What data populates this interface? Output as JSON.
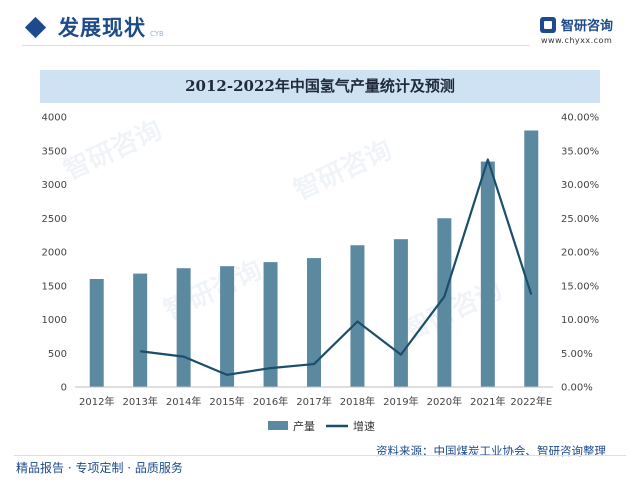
{
  "header": {
    "section_title": "发展现状",
    "section_title_en": "CYB",
    "logo_name": "智研咨询",
    "logo_url": "www.chyxx.com",
    "logo_icon": "brand-logo-icon",
    "bullet_icon": "diamond-icon"
  },
  "footer": {
    "tagline": "精品报告 · 专项定制 · 品质服务",
    "source": "资料来源：中国煤炭工业协会、智研咨询整理"
  },
  "watermark_text": "智研咨询",
  "colors": {
    "brand": "#1d4a8a",
    "bar": "#5b8aa0",
    "line": "#1b4e6b",
    "title_bar": "#cfe2f4"
  },
  "chart_data": {
    "type": "bar",
    "title": "2012-2022年中国氢气产量统计及预测",
    "categories": [
      "2012年",
      "2013年",
      "2014年",
      "2015年",
      "2016年",
      "2017年",
      "2018年",
      "2019年",
      "2020年",
      "2021年",
      "2022年E"
    ],
    "series": [
      {
        "name": "产量",
        "type": "bar",
        "axis": "left",
        "values": [
          1600,
          1680,
          1760,
          1790,
          1850,
          1910,
          2100,
          2190,
          2500,
          3340,
          3800
        ]
      },
      {
        "name": "增速",
        "type": "line",
        "axis": "right",
        "values": [
          null,
          0.053,
          0.045,
          0.018,
          0.028,
          0.034,
          0.097,
          0.048,
          0.134,
          0.337,
          0.137
        ]
      }
    ],
    "y_left": {
      "min": 0,
      "max": 4000,
      "step": 500,
      "ticks": [
        "0",
        "500",
        "1000",
        "1500",
        "2000",
        "2500",
        "3000",
        "3500",
        "4000"
      ]
    },
    "y_right": {
      "min": 0,
      "max": 0.4,
      "step": 0.05,
      "ticks": [
        "0.00%",
        "5.00%",
        "10.00%",
        "15.00%",
        "20.00%",
        "25.00%",
        "30.00%",
        "35.00%",
        "40.00%"
      ]
    },
    "grid": false,
    "legend": {
      "position": "bottom",
      "items": [
        "产量",
        "增速"
      ]
    }
  }
}
